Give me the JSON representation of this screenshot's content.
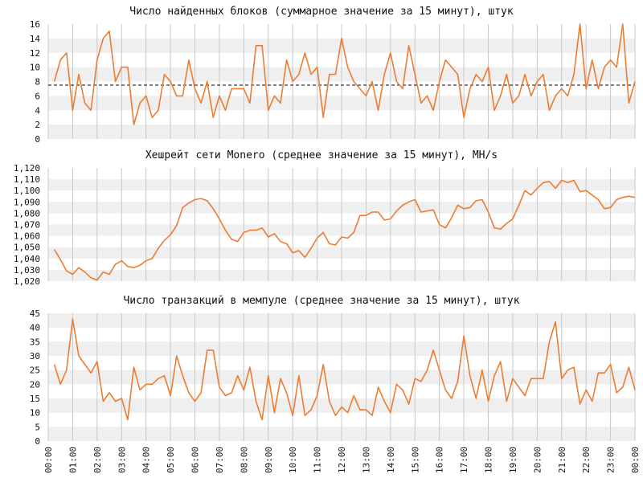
{
  "colors": {
    "line": "#ec7d32",
    "band": "#efefef",
    "grid": "#c8c8c8",
    "text": "#111111",
    "reference": "#000000"
  },
  "x_axis": {
    "start_time": "00:00",
    "end_time": "24:00",
    "ticks": [
      "00:00",
      "01:00",
      "02:00",
      "03:00",
      "04:00",
      "05:00",
      "06:00",
      "07:00",
      "08:00",
      "09:00",
      "10:00",
      "11:00",
      "12:00",
      "13:00",
      "14:00",
      "15:00",
      "16:00",
      "17:00",
      "18:00",
      "19:00",
      "20:00",
      "21:00",
      "22:00",
      "23:00",
      "00:00"
    ],
    "step": "15 min"
  },
  "chart_data": [
    {
      "type": "line",
      "title": "Число найденных блоков (суммарное значение за 15 минут), штук",
      "ylim": [
        0,
        16
      ],
      "yticks": [
        0,
        2,
        4,
        6,
        8,
        10,
        12,
        14,
        16
      ],
      "ytick_labels": [
        "0",
        "2",
        "4",
        "6",
        "8",
        "10",
        "12",
        "14",
        "16"
      ],
      "reference_line": 7.5,
      "x": [
        "00:15",
        "00:30",
        "00:45",
        "01:00",
        "01:15",
        "01:30",
        "01:45",
        "02:00",
        "02:15",
        "02:30",
        "02:45",
        "03:00",
        "03:15",
        "03:30",
        "03:45",
        "04:00",
        "04:15",
        "04:30",
        "04:45",
        "05:00",
        "05:15",
        "05:30",
        "05:45",
        "06:00",
        "06:15",
        "06:30",
        "06:45",
        "07:00",
        "07:15",
        "07:30",
        "07:45",
        "08:00",
        "08:15",
        "08:30",
        "08:45",
        "09:00",
        "09:15",
        "09:30",
        "09:45",
        "10:00",
        "10:15",
        "10:30",
        "10:45",
        "11:00",
        "11:15",
        "11:30",
        "11:45",
        "12:00",
        "12:15",
        "12:30",
        "12:45",
        "13:00",
        "13:15",
        "13:30",
        "13:45",
        "14:00",
        "14:15",
        "14:30",
        "14:45",
        "15:00",
        "15:15",
        "15:30",
        "15:45",
        "16:00",
        "16:15",
        "16:30",
        "16:45",
        "17:00",
        "17:15",
        "17:30",
        "17:45",
        "18:00",
        "18:15",
        "18:30",
        "18:45",
        "19:00",
        "19:15",
        "19:30",
        "19:45",
        "20:00",
        "20:15",
        "20:30",
        "20:45",
        "21:00",
        "21:15",
        "21:30",
        "21:45",
        "22:00",
        "22:15",
        "22:30",
        "22:45",
        "23:00",
        "23:15",
        "23:30",
        "23:45",
        "00:00"
      ],
      "series": [
        {
          "values": [
            8,
            11,
            12,
            4,
            9,
            5,
            4,
            11,
            14,
            15,
            8,
            10,
            10,
            2,
            5,
            6,
            3,
            4,
            9,
            8,
            6,
            6,
            11,
            7,
            5,
            8,
            3,
            6,
            4,
            7,
            7,
            7,
            5,
            13,
            13,
            4,
            6,
            5,
            11,
            8,
            9,
            12,
            9,
            10,
            3,
            9,
            9,
            14,
            10,
            8,
            7,
            6,
            8,
            4,
            9,
            12,
            8,
            7,
            13,
            9,
            5,
            6,
            4,
            8,
            11,
            10,
            9,
            3,
            7,
            9,
            8,
            10,
            4,
            6,
            9,
            5,
            6,
            9,
            6,
            8,
            9,
            4,
            6,
            7,
            6,
            9,
            16,
            7,
            11,
            7,
            10,
            11,
            10,
            16,
            5,
            8
          ]
        }
      ]
    },
    {
      "type": "line",
      "title": "Хешрейт сети Monero (среднее значение за 15 минут), MH/s",
      "ylim": [
        1.02,
        1.12
      ],
      "yticks": [
        1.02,
        1.03,
        1.04,
        1.05,
        1.06,
        1.07,
        1.08,
        1.09,
        1.1,
        1.11,
        1.12
      ],
      "ytick_labels": [
        "1,020",
        "1,030",
        "1,040",
        "1,050",
        "1,060",
        "1,070",
        "1,080",
        "1,090",
        "1,100",
        "1,110",
        "1,120"
      ],
      "x": [
        "00:15",
        "00:30",
        "00:45",
        "01:00",
        "01:15",
        "01:30",
        "01:45",
        "02:00",
        "02:15",
        "02:30",
        "02:45",
        "03:00",
        "03:15",
        "03:30",
        "03:45",
        "04:00",
        "04:15",
        "04:30",
        "04:45",
        "05:00",
        "05:15",
        "05:30",
        "05:45",
        "06:00",
        "06:15",
        "06:30",
        "06:45",
        "07:00",
        "07:15",
        "07:30",
        "07:45",
        "08:00",
        "08:15",
        "08:30",
        "08:45",
        "09:00",
        "09:15",
        "09:30",
        "09:45",
        "10:00",
        "10:15",
        "10:30",
        "10:45",
        "11:00",
        "11:15",
        "11:30",
        "11:45",
        "12:00",
        "12:15",
        "12:30",
        "12:45",
        "13:00",
        "13:15",
        "13:30",
        "13:45",
        "14:00",
        "14:15",
        "14:30",
        "14:45",
        "15:00",
        "15:15",
        "15:30",
        "15:45",
        "16:00",
        "16:15",
        "16:30",
        "16:45",
        "17:00",
        "17:15",
        "17:30",
        "17:45",
        "18:00",
        "18:15",
        "18:30",
        "18:45",
        "19:00",
        "19:15",
        "19:30",
        "19:45",
        "20:00",
        "20:15",
        "20:30",
        "20:45",
        "21:00",
        "21:15",
        "21:30",
        "21:45",
        "22:00",
        "22:15",
        "22:30",
        "22:45",
        "23:00",
        "23:15",
        "23:30",
        "23:45",
        "00:00"
      ],
      "series": [
        {
          "values": [
            1.048,
            1.039,
            1.029,
            1.026,
            1.032,
            1.028,
            1.023,
            1.021,
            1.028,
            1.026,
            1.035,
            1.038,
            1.033,
            1.032,
            1.034,
            1.038,
            1.04,
            1.049,
            1.056,
            1.061,
            1.069,
            1.085,
            1.089,
            1.092,
            1.093,
            1.091,
            1.084,
            1.075,
            1.065,
            1.057,
            1.055,
            1.063,
            1.065,
            1.065,
            1.067,
            1.059,
            1.062,
            1.055,
            1.053,
            1.045,
            1.047,
            1.041,
            1.049,
            1.058,
            1.063,
            1.053,
            1.052,
            1.059,
            1.058,
            1.063,
            1.078,
            1.078,
            1.081,
            1.081,
            1.074,
            1.075,
            1.082,
            1.087,
            1.09,
            1.092,
            1.081,
            1.082,
            1.083,
            1.07,
            1.067,
            1.076,
            1.087,
            1.084,
            1.085,
            1.091,
            1.092,
            1.081,
            1.067,
            1.066,
            1.071,
            1.075,
            1.087,
            1.1,
            1.096,
            1.102,
            1.107,
            1.108,
            1.102,
            1.109,
            1.107,
            1.109,
            1.099,
            1.1,
            1.096,
            1.092,
            1.084,
            1.085,
            1.092,
            1.094,
            1.095,
            1.094
          ]
        }
      ]
    },
    {
      "type": "line",
      "title": "Число транзакций в мемпуле (среднее значение за 15 минут), штук",
      "ylim": [
        0,
        45
      ],
      "yticks": [
        0,
        5,
        10,
        15,
        20,
        25,
        30,
        35,
        40,
        45
      ],
      "ytick_labels": [
        "0",
        "5",
        "10",
        "15",
        "20",
        "25",
        "30",
        "35",
        "40",
        "45"
      ],
      "x": [
        "00:15",
        "00:30",
        "00:45",
        "01:00",
        "01:15",
        "01:30",
        "01:45",
        "02:00",
        "02:15",
        "02:30",
        "02:45",
        "03:00",
        "03:15",
        "03:30",
        "03:45",
        "04:00",
        "04:15",
        "04:30",
        "04:45",
        "05:00",
        "05:15",
        "05:30",
        "05:45",
        "06:00",
        "06:15",
        "06:30",
        "06:45",
        "07:00",
        "07:15",
        "07:30",
        "07:45",
        "08:00",
        "08:15",
        "08:30",
        "08:45",
        "09:00",
        "09:15",
        "09:30",
        "09:45",
        "10:00",
        "10:15",
        "10:30",
        "10:45",
        "11:00",
        "11:15",
        "11:30",
        "11:45",
        "12:00",
        "12:15",
        "12:30",
        "12:45",
        "13:00",
        "13:15",
        "13:30",
        "13:45",
        "14:00",
        "14:15",
        "14:30",
        "14:45",
        "15:00",
        "15:15",
        "15:30",
        "15:45",
        "16:00",
        "16:15",
        "16:30",
        "16:45",
        "17:00",
        "17:15",
        "17:30",
        "17:45",
        "18:00",
        "18:15",
        "18:30",
        "18:45",
        "19:00",
        "19:15",
        "19:30",
        "19:45",
        "20:00",
        "20:15",
        "20:30",
        "20:45",
        "21:00",
        "21:15",
        "21:30",
        "21:45",
        "22:00",
        "22:15",
        "22:30",
        "22:45",
        "23:00",
        "23:15",
        "23:30",
        "23:45",
        "00:00"
      ],
      "series": [
        {
          "values": [
            27,
            20,
            25,
            43,
            30,
            27,
            24,
            28,
            14,
            17,
            14,
            15,
            7.5,
            26,
            18,
            20,
            20,
            22,
            23,
            16,
            30,
            23,
            17,
            14,
            17,
            32,
            32,
            19,
            16,
            17,
            23,
            18,
            26,
            14,
            7.5,
            23,
            10,
            22,
            17,
            9,
            23,
            9,
            11,
            16,
            27,
            14,
            9,
            12,
            10,
            16,
            11,
            11,
            9,
            19,
            14,
            10,
            20,
            18,
            13,
            22,
            21,
            25,
            32,
            25,
            18,
            15,
            21,
            37,
            23,
            15,
            25,
            14,
            23,
            28,
            14,
            22,
            19,
            16,
            22,
            22,
            22,
            35,
            42,
            22,
            25,
            26,
            13,
            18,
            14,
            24,
            24,
            27,
            17,
            19,
            26,
            18
          ]
        }
      ]
    }
  ]
}
